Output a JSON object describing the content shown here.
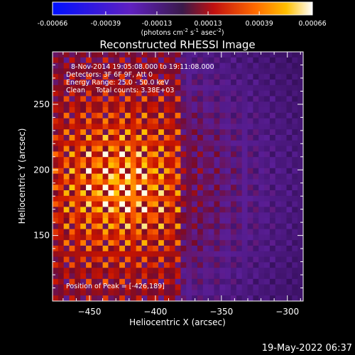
{
  "colorbar": {
    "tick_labels": [
      "-0.00066",
      "-0.00039",
      "-0.00013",
      "0.00013",
      "0.00039",
      "0.00066"
    ],
    "ticks": [
      -0.00066,
      -0.00039,
      -0.00013,
      0.00013,
      0.00039,
      0.00066
    ],
    "range": [
      -0.00066,
      0.00066
    ],
    "units_prefix": "(photons cm",
    "units_exp1": "-2",
    "units_mid": " s",
    "units_exp2": "-1",
    "units_mid2": " asec",
    "units_exp3": "-2",
    "units_suffix": ")"
  },
  "chart_data": {
    "type": "heatmap",
    "title": "Reconstructed RHESSI Image",
    "xlabel": "Heliocentric X (arcsec)",
    "ylabel": "Heliocentric Y (arcsec)",
    "xlim": [
      -478,
      -288
    ],
    "ylim": [
      100,
      290
    ],
    "x_ticks": [
      -450,
      -400,
      -350,
      -300
    ],
    "y_ticks": [
      150,
      200,
      250
    ],
    "peak": [
      -426,
      189
    ],
    "annotations": {
      "time": "8-Nov-2014 19:05:08.000 to 19:11:08.000",
      "detectors": "Detectors: 3F 6F 9F, Att 0",
      "energy": "Energy Range: 25.0 - 50.0 keV",
      "clean": "Clean     Total counts: 3.38E+03",
      "peak_label": "Position of Peak = [-426,189]"
    }
  },
  "footer": {
    "timestamp": "19-May-2022 06:37"
  },
  "colors": {
    "background": "#000000",
    "foreground": "#ffffff"
  }
}
